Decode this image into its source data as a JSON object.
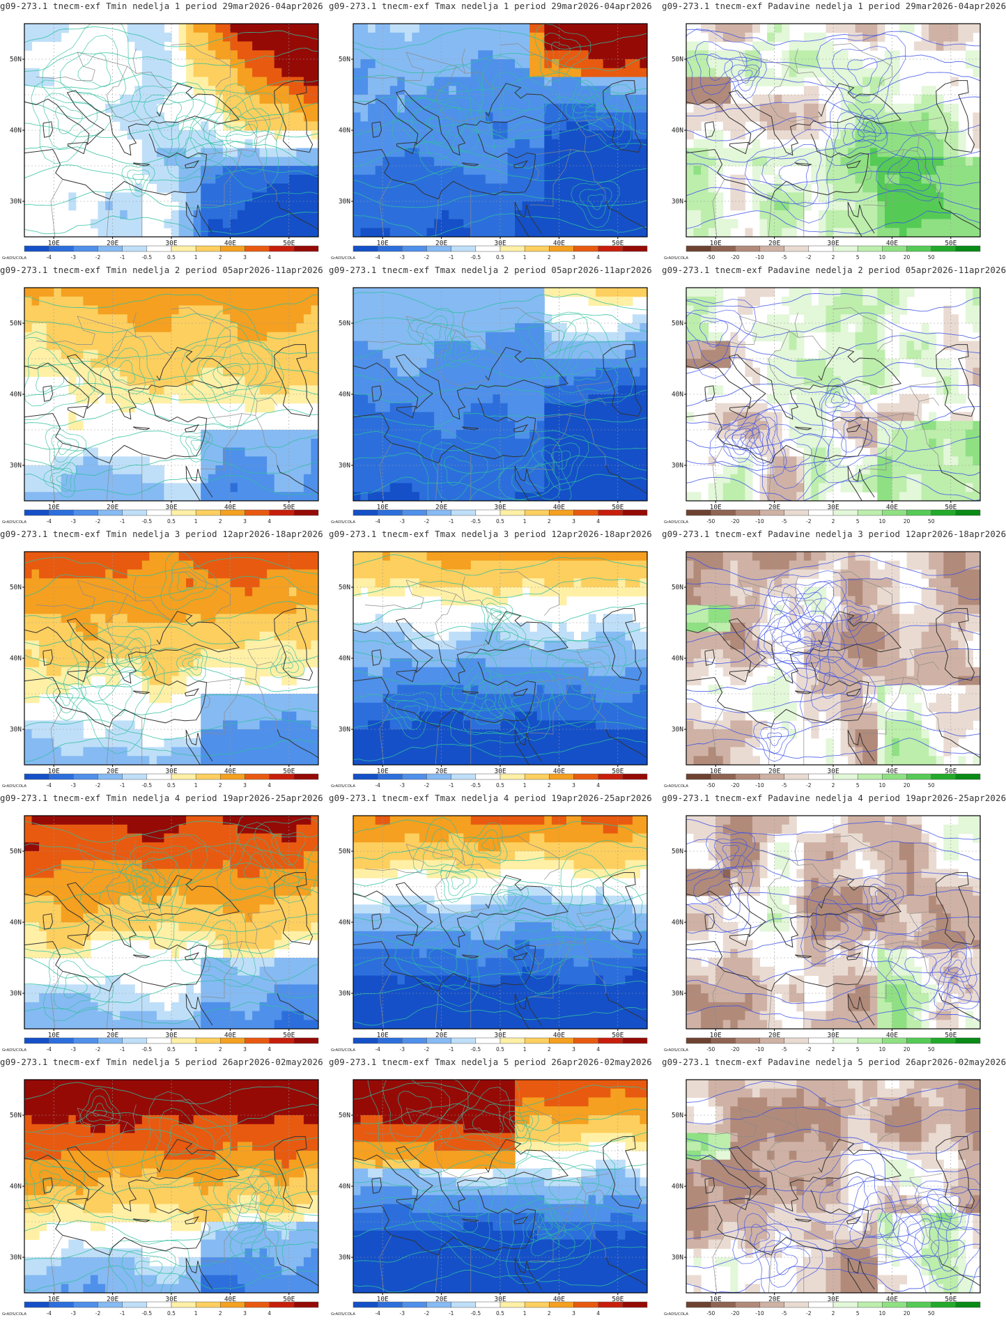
{
  "common": {
    "x_ticks": [
      "10E",
      "20E",
      "30E",
      "40E",
      "50E"
    ],
    "y_ticks": [
      "50N",
      "40N",
      "30N"
    ],
    "colorbar_credit": "GrADS/COLA"
  },
  "scales": {
    "temp": {
      "labels": [
        "-4",
        "-3",
        "-2",
        "-1",
        "-0.5",
        "0.5",
        "1",
        "2",
        "3",
        "4"
      ],
      "colors": [
        "#1550c8",
        "#2c6fdc",
        "#4f90ea",
        "#86baf3",
        "#bfdff9",
        "#ffffff",
        "#fff0a6",
        "#fdcf5f",
        "#f5a020",
        "#e85a10",
        "#c81e0c",
        "#960a06"
      ]
    },
    "precip": {
      "labels": [
        "-50",
        "-20",
        "-10",
        "-5",
        "-2",
        "2",
        "5",
        "10",
        "20",
        "50"
      ],
      "colors": [
        "#6e4230",
        "#8f6452",
        "#b18a7a",
        "#cfb2a5",
        "#eadbd2",
        "#ffffff",
        "#e3f7d9",
        "#bdeeac",
        "#8fe083",
        "#55cb55",
        "#22aa2a",
        "#0a8a16"
      ]
    }
  },
  "panels": [
    {
      "title": "g09-273.1 tnecm-exf Tmin nedelja 1 period 29mar2026-04apr2026",
      "variable": "Tmin",
      "week": 1,
      "scale": "temp",
      "seed": 3
    },
    {
      "title": "g09-273.1 tnecm-exf Tmax nedelja 1 period 29mar2026-04apr2026",
      "variable": "Tmax",
      "week": 1,
      "scale": "temp",
      "seed": 7
    },
    {
      "title": "g09-273.1 tnecm-exf Padavine nedelja 1 period 29mar2026-04apr2026",
      "variable": "Padavine",
      "week": 1,
      "scale": "precip",
      "seed": 11
    },
    {
      "title": "g09-273.1 tnecm-exf Tmin nedelja 2 period 05apr2026-11apr2026",
      "variable": "Tmin",
      "week": 2,
      "scale": "temp",
      "seed": 13
    },
    {
      "title": "g09-273.1 tnecm-exf Tmax nedelja 2 period 05apr2026-11apr2026",
      "variable": "Tmax",
      "week": 2,
      "scale": "temp",
      "seed": 17
    },
    {
      "title": "g09-273.1 tnecm-exf Padavine nedelja 2 period 05apr2026-11apr2026",
      "variable": "Padavine",
      "week": 2,
      "scale": "precip",
      "seed": 19
    },
    {
      "title": "g09-273.1 tnecm-exf Tmin nedelja 3 period 12apr2026-18apr2026",
      "variable": "Tmin",
      "week": 3,
      "scale": "temp",
      "seed": 23
    },
    {
      "title": "g09-273.1 tnecm-exf Tmax nedelja 3 period 12apr2026-18apr2026",
      "variable": "Tmax",
      "week": 3,
      "scale": "temp",
      "seed": 29
    },
    {
      "title": "g09-273.1 tnecm-exf Padavine nedelja 3 period 12apr2026-18apr2026",
      "variable": "Padavine",
      "week": 3,
      "scale": "precip",
      "seed": 31
    },
    {
      "title": "g09-273.1 tnecm-exf Tmin nedelja 4 period 19apr2026-25apr2026",
      "variable": "Tmin",
      "week": 4,
      "scale": "temp",
      "seed": 37
    },
    {
      "title": "g09-273.1 tnecm-exf Tmax nedelja 4 period 19apr2026-25apr2026",
      "variable": "Tmax",
      "week": 4,
      "scale": "temp",
      "seed": 41
    },
    {
      "title": "g09-273.1 tnecm-exf Padavine nedelja 4 period 19apr2026-25apr2026",
      "variable": "Padavine",
      "week": 4,
      "scale": "precip",
      "seed": 43
    },
    {
      "title": "g09-273.1 tnecm-exf Tmin nedelja 5 period 26apr2026-02may2026",
      "variable": "Tmin",
      "week": 5,
      "scale": "temp",
      "seed": 47
    },
    {
      "title": "g09-273.1 tnecm-exf Tmax nedelja 5 period 26apr2026-02may2026",
      "variable": "Tmax",
      "week": 5,
      "scale": "temp",
      "seed": 53
    },
    {
      "title": "g09-273.1 tnecm-exf Padavine nedelja 5 period 26apr2026-02may2026",
      "variable": "Padavine",
      "week": 5,
      "scale": "precip",
      "seed": 59
    }
  ]
}
